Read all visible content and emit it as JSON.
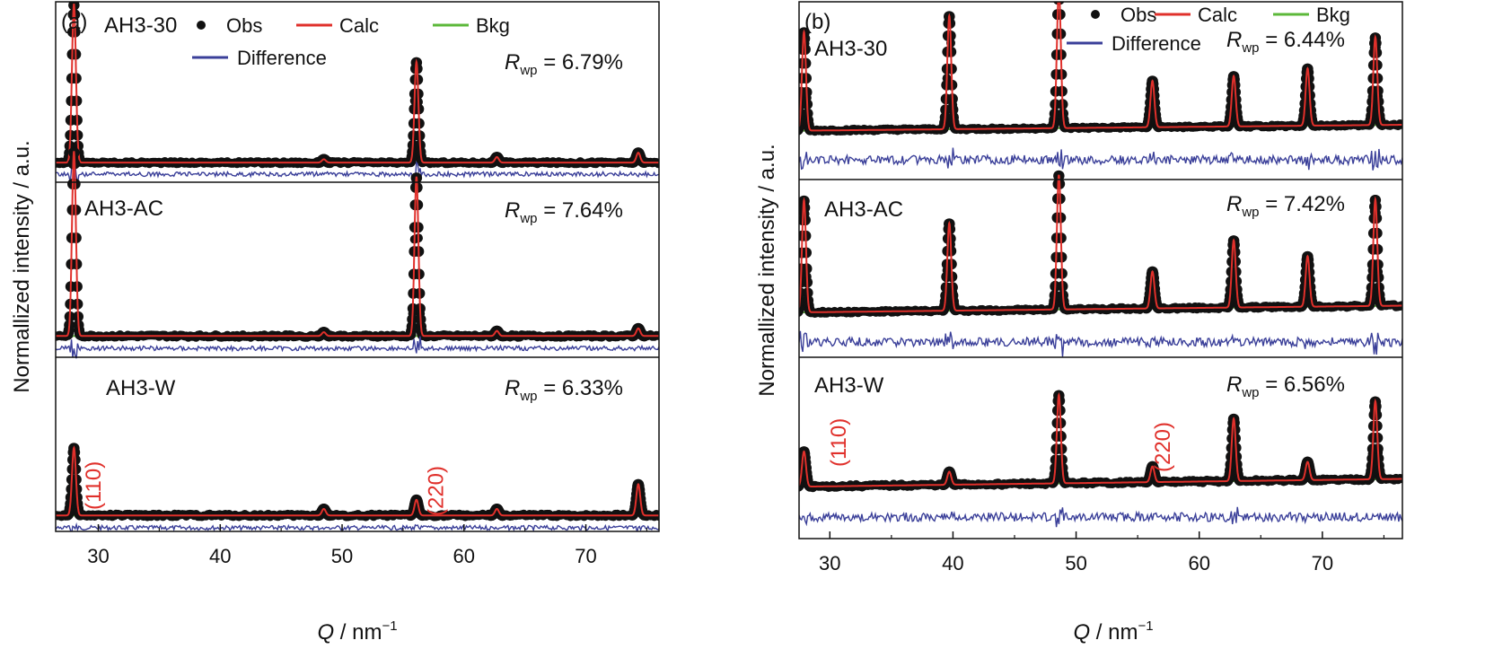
{
  "chart_data": [
    {
      "type": "line",
      "panel_label": "(a)",
      "xlabel_symbol": "Q",
      "xlabel_rest": " / nm",
      "xlabel_sup": "−1",
      "ylabel": "Normallized intensity / a.u.",
      "xlim": [
        26.5,
        76
      ],
      "xticks": [
        30,
        40,
        50,
        60,
        70
      ],
      "legend": {
        "placement": "top",
        "entries": [
          {
            "key": "obs",
            "label": "Obs",
            "color": "#111111",
            "symbol": "dot"
          },
          {
            "key": "calc",
            "label": "Calc",
            "color": "#e0302b",
            "symbol": "line"
          },
          {
            "key": "bkg",
            "label": "Bkg",
            "color": "#5cb83a",
            "symbol": "line"
          },
          {
            "key": "diff",
            "label": "Difference",
            "color": "#3a3f99",
            "symbol": "line"
          }
        ]
      },
      "rwp_symbol": "R",
      "rwp_sub": "wp",
      "subpanels": [
        {
          "sample": "AH3-30",
          "rwp": " = 6.79%",
          "peaks": [
            {
              "q": 28.0,
              "h": 1.45
            },
            {
              "q": 48.5,
              "h": 0.03
            },
            {
              "q": 56.1,
              "h": 0.92
            },
            {
              "q": 62.7,
              "h": 0.05
            },
            {
              "q": 74.3,
              "h": 0.09
            }
          ]
        },
        {
          "sample": "AH3-AC",
          "rwp": " = 7.64%",
          "peaks": [
            {
              "q": 28.0,
              "h": 1.45
            },
            {
              "q": 48.5,
              "h": 0.03
            },
            {
              "q": 56.1,
              "h": 1.25
            },
            {
              "q": 62.7,
              "h": 0.04
            },
            {
              "q": 74.3,
              "h": 0.06
            }
          ]
        },
        {
          "sample": "AH3-W",
          "rwp": " = 6.33%",
          "peaks": [
            {
              "q": 28.0,
              "h": 0.52
            },
            {
              "q": 48.5,
              "h": 0.05
            },
            {
              "q": 56.1,
              "h": 0.12
            },
            {
              "q": 62.7,
              "h": 0.05
            },
            {
              "q": 74.3,
              "h": 0.24
            }
          ],
          "hkl": [
            {
              "label": "(110)",
              "q": 30.2
            },
            {
              "label": "(220)",
              "q": 58.3
            }
          ]
        }
      ]
    },
    {
      "type": "line",
      "panel_label": "(b)",
      "xlabel_symbol": "Q",
      "xlabel_rest": " / nm",
      "xlabel_sup": "−1",
      "ylabel": "Normallized intensity / a.u.",
      "xlim": [
        27.5,
        76.5
      ],
      "xticks": [
        30,
        40,
        50,
        60,
        70
      ],
      "legend": {
        "placement": "top-right",
        "entries": [
          {
            "key": "obs",
            "label": "Obs",
            "color": "#111111",
            "symbol": "dot"
          },
          {
            "key": "calc",
            "label": "Calc",
            "color": "#e0302b",
            "symbol": "line"
          },
          {
            "key": "bkg",
            "label": "Bkg",
            "color": "#5cb83a",
            "symbol": "line"
          },
          {
            "key": "diff",
            "label": "Difference",
            "color": "#3a3f99",
            "symbol": "line"
          }
        ]
      },
      "rwp_symbol": "R",
      "rwp_sub": "wp",
      "subpanels": [
        {
          "sample": "AH3-30",
          "rwp": " = 6.44%",
          "peaks": [
            {
              "q": 27.9,
              "h": 1.0
            },
            {
              "q": 39.7,
              "h": 1.15
            },
            {
              "q": 48.6,
              "h": 1.4
            },
            {
              "q": 56.2,
              "h": 0.47
            },
            {
              "q": 62.8,
              "h": 0.51
            },
            {
              "q": 68.8,
              "h": 0.58
            },
            {
              "q": 74.3,
              "h": 0.89
            }
          ]
        },
        {
          "sample": "AH3-AC",
          "rwp": " = 7.42%",
          "peaks": [
            {
              "q": 27.9,
              "h": 1.0
            },
            {
              "q": 39.7,
              "h": 0.78
            },
            {
              "q": 48.6,
              "h": 1.2
            },
            {
              "q": 56.2,
              "h": 0.33
            },
            {
              "q": 62.8,
              "h": 0.6
            },
            {
              "q": 68.8,
              "h": 0.45
            },
            {
              "q": 74.3,
              "h": 0.95
            }
          ]
        },
        {
          "sample": "AH3-W",
          "rwp": " = 6.56%",
          "peaks": [
            {
              "q": 27.9,
              "h": 0.27
            },
            {
              "q": 39.7,
              "h": 0.1
            },
            {
              "q": 48.6,
              "h": 0.68
            },
            {
              "q": 56.2,
              "h": 0.12
            },
            {
              "q": 62.8,
              "h": 0.48
            },
            {
              "q": 68.8,
              "h": 0.14
            },
            {
              "q": 74.3,
              "h": 0.6
            }
          ],
          "hkl": [
            {
              "label": "(110)",
              "q": 31.3
            },
            {
              "label": "(220)",
              "q": 57.6
            }
          ]
        }
      ]
    }
  ]
}
